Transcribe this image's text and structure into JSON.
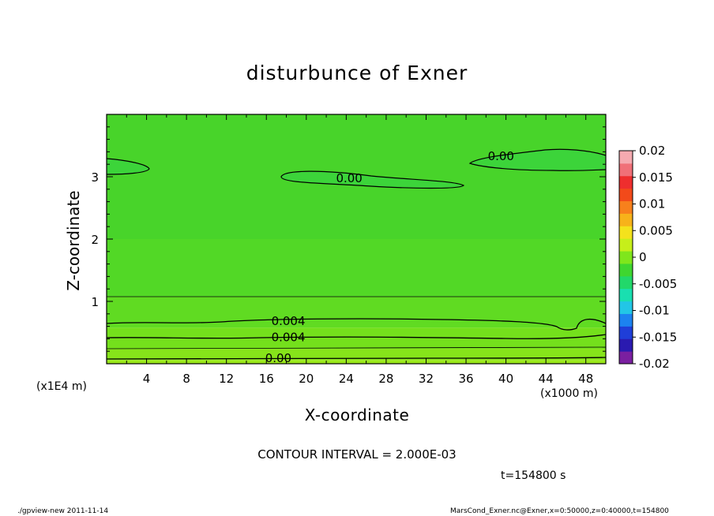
{
  "chart_data": {
    "type": "heatmap",
    "title": "disturbunce of Exner",
    "xlabel": "X-coordinate",
    "ylabel": "Z-coordinate",
    "x_unit_label": "(x1000 m)",
    "z_unit_label": "(x1E4 m)",
    "xlim": [
      0,
      50
    ],
    "ylim": [
      0,
      4
    ],
    "x_ticks": [
      "4",
      "8",
      "12",
      "16",
      "20",
      "24",
      "28",
      "32",
      "36",
      "40",
      "44",
      "48"
    ],
    "y_ticks": [
      "1",
      "2",
      "3"
    ],
    "contour_interval_text": "CONTOUR INTERVAL = 2.000E-03",
    "time_text": "t=154800 s",
    "contour_labels": [
      {
        "text": "0.00",
        "x": 39.5,
        "z": 3.32
      },
      {
        "text": "0.00",
        "x": 24.3,
        "z": 2.97
      },
      {
        "text": "0.004",
        "x": 18.2,
        "z": 0.68
      },
      {
        "text": "0.004",
        "x": 18.2,
        "z": 0.42
      },
      {
        "text": "0.00",
        "x": 17.2,
        "z": 0.08
      }
    ],
    "colorbar": {
      "ticks": [
        "0.02",
        "0.015",
        "0.01",
        "0.005",
        "0",
        "-0.005",
        "-0.01",
        "-0.015",
        "-0.02"
      ],
      "range": [
        -0.02,
        0.02
      ],
      "colors": [
        "#7a1fa0",
        "#2a1ab0",
        "#1f3ed8",
        "#1c82f0",
        "#22c6e6",
        "#19dfb0",
        "#22d86a",
        "#3fd630",
        "#7fe61c",
        "#c6ef1a",
        "#f4e21c",
        "#f7b21a",
        "#f7801c",
        "#f24a1a",
        "#ee2e2e",
        "#f07078",
        "#f5aab0"
      ]
    },
    "bands": [
      {
        "z0": 0.0,
        "z1": 0.06,
        "color": "#9ae81a"
      },
      {
        "z0": 0.06,
        "z1": 0.24,
        "color": "#86e41a"
      },
      {
        "z0": 0.24,
        "z1": 0.58,
        "color": "#74e01c"
      },
      {
        "z0": 0.58,
        "z1": 1.08,
        "color": "#60db22"
      },
      {
        "z0": 1.08,
        "z1": 2.0,
        "color": "#52d826"
      },
      {
        "z0": 2.0,
        "z1": 4.0,
        "color": "#48d42a"
      }
    ]
  },
  "footer": {
    "left": "./gpview-new 2011-11-14",
    "right": "MarsCond_Exner.nc@Exner,x=0:50000,z=0:40000,t=154800"
  }
}
